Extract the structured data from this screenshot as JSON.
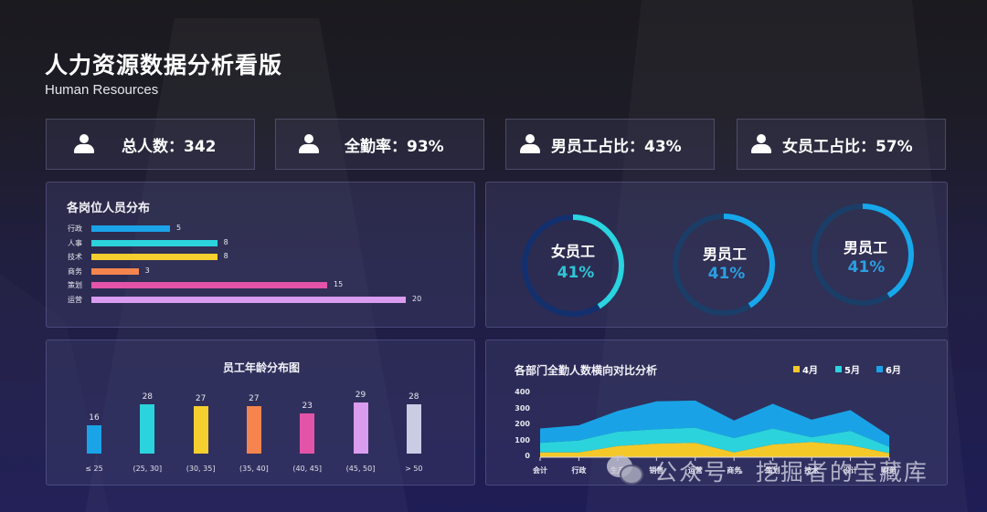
{
  "header": {
    "title": "人力资源数据分析看版",
    "subtitle": "Human Resources"
  },
  "kpis": [
    {
      "icon": "person-icon",
      "label": "总人数：342"
    },
    {
      "icon": "person-icon",
      "label": "全勤率：93%"
    },
    {
      "icon": "person-icon",
      "label": "男员工占比：43%"
    },
    {
      "icon": "person-icon",
      "label": "女员工占比：57%"
    }
  ],
  "position_panel": {
    "title": "各岗位人员分布"
  },
  "donuts": [
    {
      "label": "女员工",
      "percent": "41%",
      "value": 41,
      "color": "#2ad4e0",
      "track": "#13306e",
      "text_color": "#2ec6d6"
    },
    {
      "label": "男员工",
      "percent": "41%",
      "value": 41,
      "color": "#16a8ea",
      "track": "#1b3e68",
      "text_color": "#2b9fe0"
    },
    {
      "label": "男员工",
      "percent": "41%",
      "value": 41,
      "color": "#16a8ea",
      "track": "#1b3e68",
      "text_color": "#2b9fe0"
    }
  ],
  "age_panel": {
    "title": "员工年龄分布图"
  },
  "attendance_panel": {
    "title": "各部门全勤人数横向对比分析",
    "legend": [
      {
        "label": "4月",
        "color": "#f5c829"
      },
      {
        "label": "5月",
        "color": "#2bd3dc"
      },
      {
        "label": "6月",
        "color": "#19a3e6"
      }
    ]
  },
  "watermark": {
    "text": "公众号 · 挖掘者的宝藏库"
  },
  "chart_data": [
    {
      "type": "bar",
      "orientation": "horizontal",
      "title": "各岗位人员分布",
      "categories": [
        "行政",
        "人事",
        "技术",
        "商务",
        "策划",
        "运营"
      ],
      "values": [
        5,
        8,
        8,
        3,
        15,
        20
      ],
      "colors": [
        "#1ba3e8",
        "#2bd3dc",
        "#f5cf2e",
        "#f5844e",
        "#e354a8",
        "#d99cef"
      ],
      "xlabel": "",
      "ylabel": "",
      "grid": false
    },
    {
      "type": "bar",
      "title": "员工年龄分布图",
      "categories": [
        "≤ 25",
        "(25, 30]",
        "(30, 35]",
        "(35, 40]",
        "(40, 45]",
        "(45, 50]",
        "> 50"
      ],
      "values": [
        16,
        28,
        27,
        27,
        23,
        29,
        28
      ],
      "colors": [
        "#1ba3e8",
        "#2bd3dc",
        "#f5cf2e",
        "#f5844e",
        "#e354a8",
        "#d99cef",
        "#c9cce3"
      ],
      "xlabel": "",
      "ylabel": "",
      "grid": false
    },
    {
      "type": "area",
      "stacked": true,
      "title": "各部门全勤人数横向对比分析",
      "categories": [
        "会计",
        "行政",
        "生产",
        "销售",
        "运营",
        "商务",
        "策划",
        "技术",
        "设计",
        "财务"
      ],
      "series": [
        {
          "name": "4月",
          "values": [
            30,
            30,
            70,
            85,
            90,
            30,
            80,
            95,
            75,
            25
          ]
        },
        {
          "name": "5月",
          "values": [
            60,
            75,
            90,
            90,
            95,
            90,
            100,
            30,
            90,
            40
          ]
        },
        {
          "name": "6月",
          "values": [
            90,
            95,
            130,
            175,
            170,
            110,
            155,
            110,
            130,
            70
          ]
        }
      ],
      "ylim": [
        0,
        400
      ],
      "yticks": [
        0,
        100,
        200,
        300,
        400
      ],
      "legend_position": "top-right",
      "grid": false
    }
  ]
}
